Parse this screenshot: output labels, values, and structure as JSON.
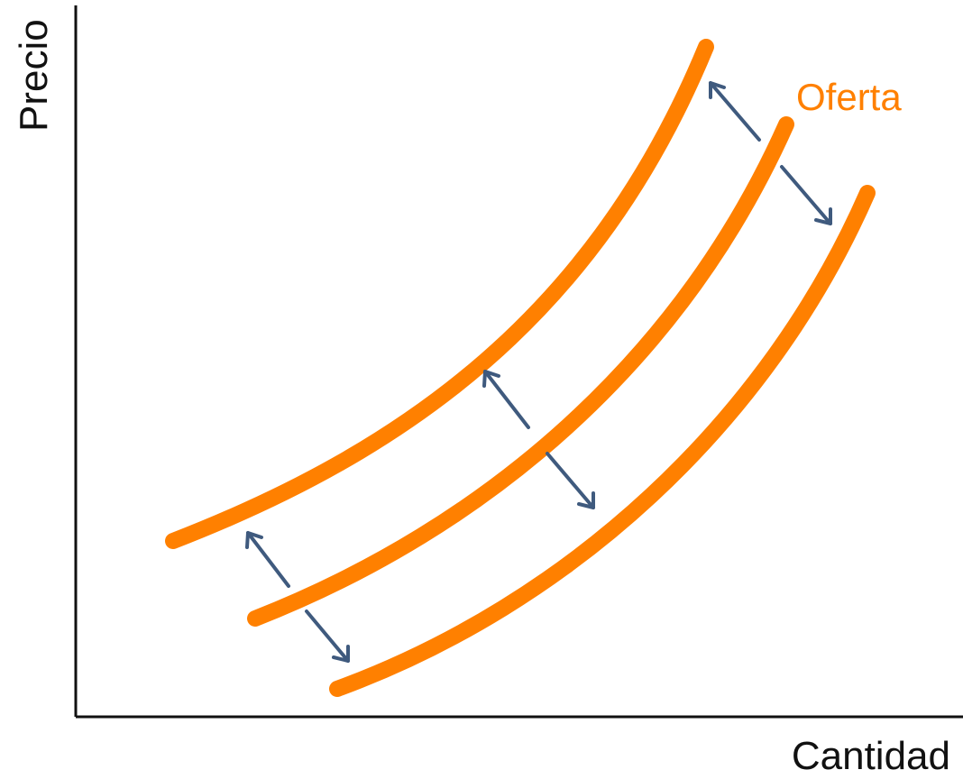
{
  "diagram": {
    "x_axis_label": "Cantidad",
    "y_axis_label": "Precio",
    "curve_label": "Oferta",
    "curve_count": 3,
    "shift_arrow_count": 3,
    "colors": {
      "curve": "#ff8000",
      "arrow": "#3f5a7e",
      "axis": "#111111"
    }
  }
}
